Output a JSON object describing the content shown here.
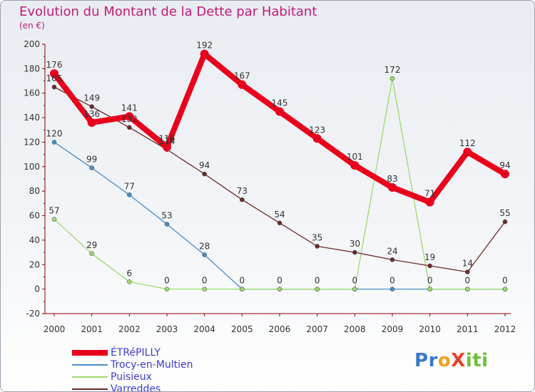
{
  "header": {
    "title": "Evolution du Montant de la Dette par Habitant",
    "subtitle": "(en €)"
  },
  "chart_data": {
    "type": "line",
    "x": [
      2000,
      2001,
      2002,
      2003,
      2004,
      2005,
      2006,
      2007,
      2008,
      2009,
      2010,
      2011,
      2012
    ],
    "ylim": [
      -20,
      200
    ],
    "yticks": [
      -20,
      0,
      20,
      40,
      60,
      80,
      100,
      120,
      140,
      160,
      180,
      200
    ],
    "grid": false,
    "legend_position": "bottom-left",
    "series": [
      {
        "name": "ÉTRéPILLY",
        "color": "#e8001c",
        "values": [
          176,
          136,
          141,
          116,
          192,
          167,
          145,
          123,
          101,
          83,
          71,
          112,
          94
        ]
      },
      {
        "name": "Trocy-en-Multien",
        "color": "#4a8ec9",
        "values": [
          120,
          99,
          77,
          53,
          28,
          0,
          0,
          0,
          0,
          0,
          0,
          0,
          0
        ]
      },
      {
        "name": "Puisieux",
        "color": "#9fd96b",
        "values": [
          57,
          29,
          6,
          0,
          0,
          0,
          0,
          0,
          0,
          172,
          0,
          0,
          0
        ]
      },
      {
        "name": "Varreddes",
        "color": "#6e2a2a",
        "values": [
          165,
          149,
          132,
          114,
          94,
          73,
          54,
          35,
          30,
          24,
          19,
          14,
          55
        ]
      }
    ]
  },
  "logo": {
    "letters": [
      {
        "ch": "P",
        "color": "#3a78c8"
      },
      {
        "ch": "r",
        "color": "#3a78c8"
      },
      {
        "ch": "o",
        "color": "#f0a21c"
      },
      {
        "ch": "X",
        "color": "#e8412b"
      },
      {
        "ch": "i",
        "color": "#6cbf3a"
      },
      {
        "ch": "t",
        "color": "#6cbf3a"
      },
      {
        "ch": "i",
        "color": "#6cbf3a"
      }
    ]
  }
}
